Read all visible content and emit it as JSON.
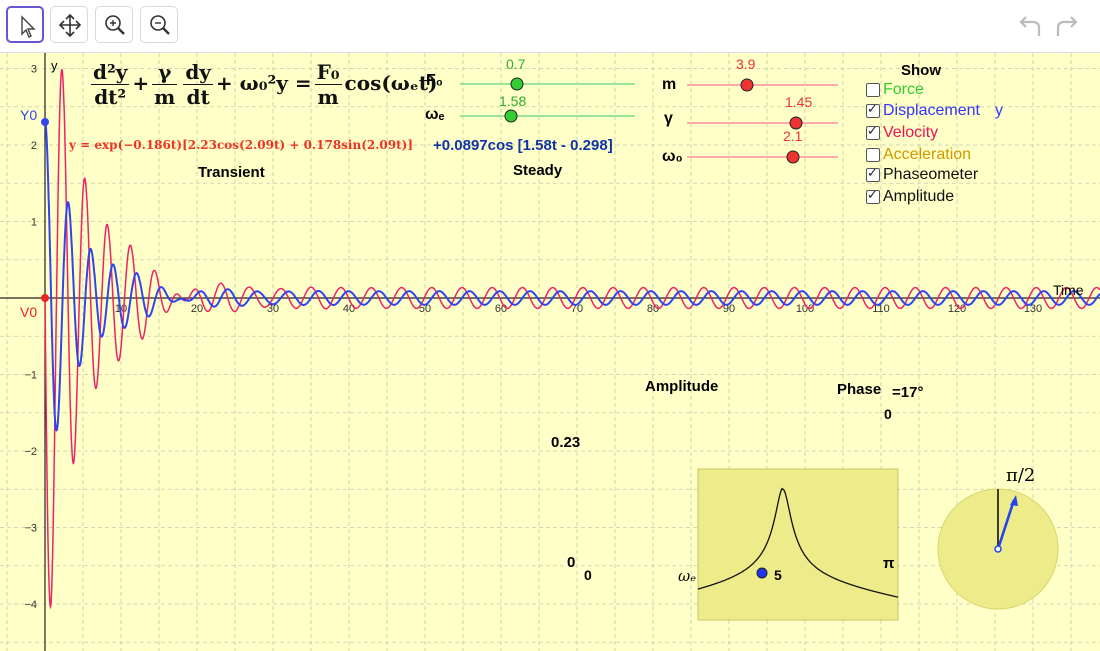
{
  "toolbar": {
    "tools": [
      "move-tool",
      "move-graphics-view-tool",
      "zoom-in-tool",
      "zoom-out-tool"
    ],
    "undo_icon": "undo-icon",
    "redo_icon": "redo-icon"
  },
  "graph": {
    "axis_y_label": "y",
    "axis_x_label": "Time",
    "x_ticks": [
      "10",
      "20",
      "30",
      "40",
      "50",
      "60",
      "70",
      "80",
      "90",
      "100",
      "110",
      "120",
      "130"
    ],
    "y_ticks": [
      "3",
      "2",
      "1",
      "−1",
      "−2",
      "−3",
      "−4"
    ],
    "y0_label": "Y0",
    "v0_label": "V0",
    "transient_eq": "y = exp(−0.186t)[2.23cos(2.09t) + 0.178sin(2.09t)]",
    "transient_label": "Transient",
    "steady_eq": "+0.0897cos [1.58t - 0.298]",
    "steady_label": "Steady"
  },
  "equation": {
    "d2y": "d²y",
    "dt2": "dt²",
    "gamma": "γ",
    "m": "m",
    "dy": "dy",
    "dt": "dt",
    "omega_term": "ω₀²y",
    "equals": "=",
    "F0": "F₀",
    "cos": "cos(ωₑt)"
  },
  "sliders": {
    "F0": {
      "label": "F₀",
      "value": "0.7",
      "fraction": 0.35
    },
    "we": {
      "label": "ωₑ",
      "value": "1.58",
      "fraction": 0.3
    },
    "m": {
      "label": "m",
      "value": "3.9",
      "fraction": 0.4
    },
    "gamma": {
      "label": "γ",
      "value": "1.45",
      "fraction": 0.8
    },
    "w0": {
      "label": "ω₀",
      "value": "2.1",
      "fraction": 0.75
    }
  },
  "show_panel": {
    "title": "Show",
    "items": [
      {
        "label": "Force",
        "checked": false,
        "color": "#33cc33"
      },
      {
        "label": "Displacement",
        "checked": true,
        "color": "#3333ff",
        "extra": "y"
      },
      {
        "label": "Velocity",
        "checked": true,
        "color": "#ee1155"
      },
      {
        "label": "Acceleration",
        "checked": false,
        "color": "#cc9900"
      },
      {
        "label": "Phaseometer",
        "checked": true,
        "color": "#111111"
      },
      {
        "label": "Amplitude",
        "checked": true,
        "color": "#111111"
      }
    ]
  },
  "amplitude_panel": {
    "title": "Amplitude",
    "phase_label": "Phase",
    "phase_value": "=17°",
    "phase_zero": "0",
    "amp_value": "0.23",
    "zero_a": "0",
    "zero_b": "0",
    "omega_label": "ωₑ",
    "five": "5",
    "pi": "π",
    "pi_half": "π/2"
  },
  "colors": {
    "background": "#ffffc8",
    "displacement": "#3344ee",
    "velocity": "#ee2266",
    "transient": "#ee3322",
    "steady": "#1133aa",
    "green_slider": "#33cc33",
    "red_slider": "#ff7777"
  }
}
